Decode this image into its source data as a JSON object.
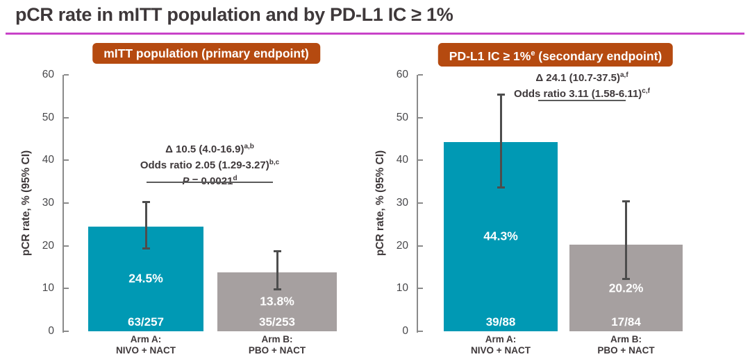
{
  "title": "pCR rate in mITT population and by PD-L1 IC ≥ 1%",
  "colors": {
    "title_underline": "#c843c8",
    "badge_bg": "#b54a10",
    "teal": "#0099b4",
    "gray": "#a6a0a0",
    "error_bar": "#4d4d4d"
  },
  "chart_data": [
    {
      "type": "bar",
      "panel_title": {
        "text": "mITT population (primary endpoint)",
        "sup": "",
        "text_after": ""
      },
      "ylabel": "pCR rate, % (95% CI)",
      "ylim": [
        0,
        60
      ],
      "yticks": [
        0,
        10,
        20,
        30,
        40,
        50,
        60
      ],
      "grid": false,
      "legend_position": "none",
      "bars": [
        {
          "category_line1": "Arm A:",
          "category_line2": "NIVO + NACT",
          "value": 24.5,
          "value_label": "24.5%",
          "count_label": "63/257",
          "ci": [
            19.4,
            30.2
          ],
          "color_key": "teal"
        },
        {
          "category_line1": "Arm B:",
          "category_line2": "PBO + NACT",
          "value": 13.8,
          "value_label": "13.8%",
          "count_label": "35/253",
          "ci": [
            9.8,
            18.7
          ],
          "color_key": "gray"
        }
      ],
      "annotation": {
        "lines": [
          {
            "text": "Δ 10.5 (4.0-16.9)",
            "sup": "a,b"
          },
          {
            "text": "Odds ratio 2.05 (1.29-3.27)",
            "sup": "b,c"
          },
          {
            "italic_prefix": "P",
            "text": " = 0.0021",
            "sup": "d"
          }
        ]
      }
    },
    {
      "type": "bar",
      "panel_title": {
        "text": "PD-L1 IC ≥ 1%",
        "sup": "e",
        "text_after": " (secondary endpoint)"
      },
      "ylabel": "pCR rate, % (95% CI)",
      "ylim": [
        0,
        60
      ],
      "yticks": [
        0,
        10,
        20,
        30,
        40,
        50,
        60
      ],
      "grid": false,
      "legend_position": "none",
      "bars": [
        {
          "category_line1": "Arm A:",
          "category_line2": "NIVO + NACT",
          "value": 44.3,
          "value_label": "44.3%",
          "count_label": "39/88",
          "ci": [
            33.7,
            55.3
          ],
          "color_key": "teal"
        },
        {
          "category_line1": "Arm B:",
          "category_line2": "PBO + NACT",
          "value": 20.2,
          "value_label": "20.2%",
          "count_label": "17/84",
          "ci": [
            12.3,
            30.4
          ],
          "color_key": "gray"
        }
      ],
      "annotation": {
        "lines": [
          {
            "text": "Δ 24.1 (10.7-37.5)",
            "sup": "a,f"
          },
          {
            "text": "Odds ratio 3.11 (1.58-6.11)",
            "sup": "c,f"
          }
        ]
      }
    }
  ]
}
